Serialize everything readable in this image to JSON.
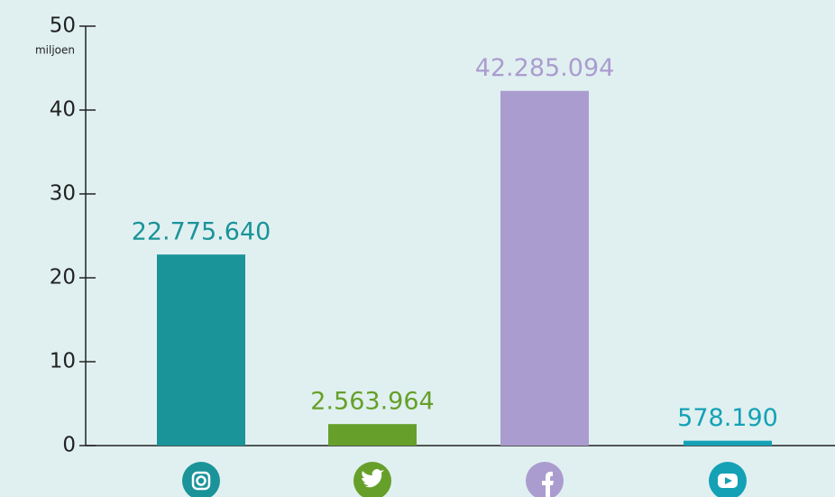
{
  "chart_data": {
    "type": "bar",
    "ylabel": "miljoen",
    "categories": [
      null,
      null,
      null,
      null
    ],
    "values": [
      22.77564,
      2.563964,
      42.285094,
      0.57819
    ],
    "value_labels": [
      "22.775.640",
      "2.563.964",
      "42.285.094",
      "578.190"
    ],
    "colors": [
      "#1a9399",
      "#66a02a",
      "#ab9ccf",
      "#14a1b6"
    ],
    "ylim": [
      0,
      50
    ],
    "yticks": [
      0,
      10,
      20,
      30,
      40,
      50
    ],
    "grid": false
  }
}
